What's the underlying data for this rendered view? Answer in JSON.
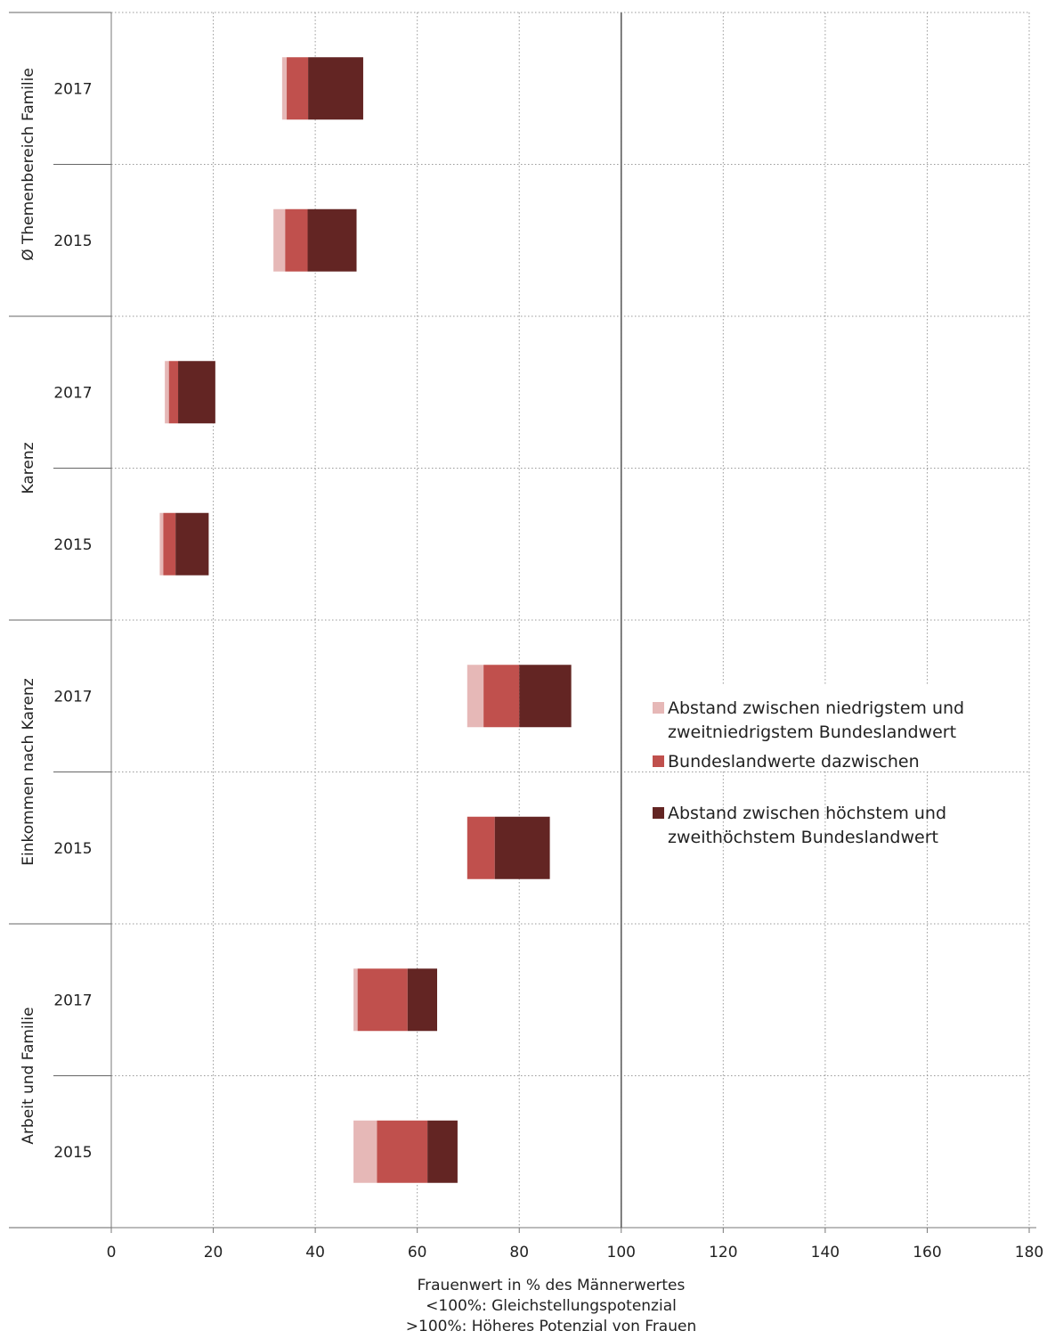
{
  "chart_data": {
    "type": "bar",
    "orientation": "horizontal",
    "stacked": true,
    "xlim": [
      0,
      180
    ],
    "xticks": [
      0,
      20,
      40,
      60,
      80,
      100,
      120,
      140,
      160,
      180
    ],
    "reference_line": 100,
    "grid": true,
    "legend_position": "right",
    "xlabel_lines": [
      "Frauenwert in % des Männerwertes",
      "<100%: Gleichstellungspotenzial",
      ">100%: Höheres Potenzial von Frauen"
    ],
    "series": [
      {
        "name_lines": [
          "Abstand zwischen niedrigstem und",
          "zweitniedrigstem Bundeslandwert"
        ],
        "color": "#e6b8b7"
      },
      {
        "name_lines": [
          "Bundeslandwerte dazwischen"
        ],
        "color": "#c0504d"
      },
      {
        "name_lines": [
          "Abstand zwischen höchstem und",
          "zweithöchstem Bundeslandwert"
        ],
        "color": "#632523"
      }
    ],
    "groups": [
      {
        "label": "Ø Themenbereich  Familie",
        "rows": [
          {
            "year": "2017",
            "start": 33.5,
            "segments": [
              0.9,
              4.2,
              10.8
            ]
          },
          {
            "year": "2015",
            "start": 31.8,
            "segments": [
              2.3,
              4.4,
              9.6
            ]
          }
        ]
      },
      {
        "label": "Karenz",
        "rows": [
          {
            "year": "2017",
            "start": 10.5,
            "segments": [
              0.8,
              1.8,
              7.3
            ]
          },
          {
            "year": "2015",
            "start": 9.5,
            "segments": [
              0.7,
              2.4,
              6.5
            ]
          }
        ]
      },
      {
        "label": "Einkommen nach Karenz",
        "rows": [
          {
            "year": "2017",
            "start": 69.8,
            "segments": [
              3.2,
              7.0,
              10.2
            ]
          },
          {
            "year": "2015",
            "start": 69.8,
            "segments": [
              0.0,
              5.4,
              10.8
            ]
          }
        ]
      },
      {
        "label": "Arbeit und Familie",
        "rows": [
          {
            "year": "2017",
            "start": 47.5,
            "segments": [
              0.8,
              9.8,
              5.8
            ]
          },
          {
            "year": "2015",
            "start": 47.5,
            "segments": [
              4.6,
              9.9,
              5.9
            ]
          }
        ]
      }
    ]
  }
}
